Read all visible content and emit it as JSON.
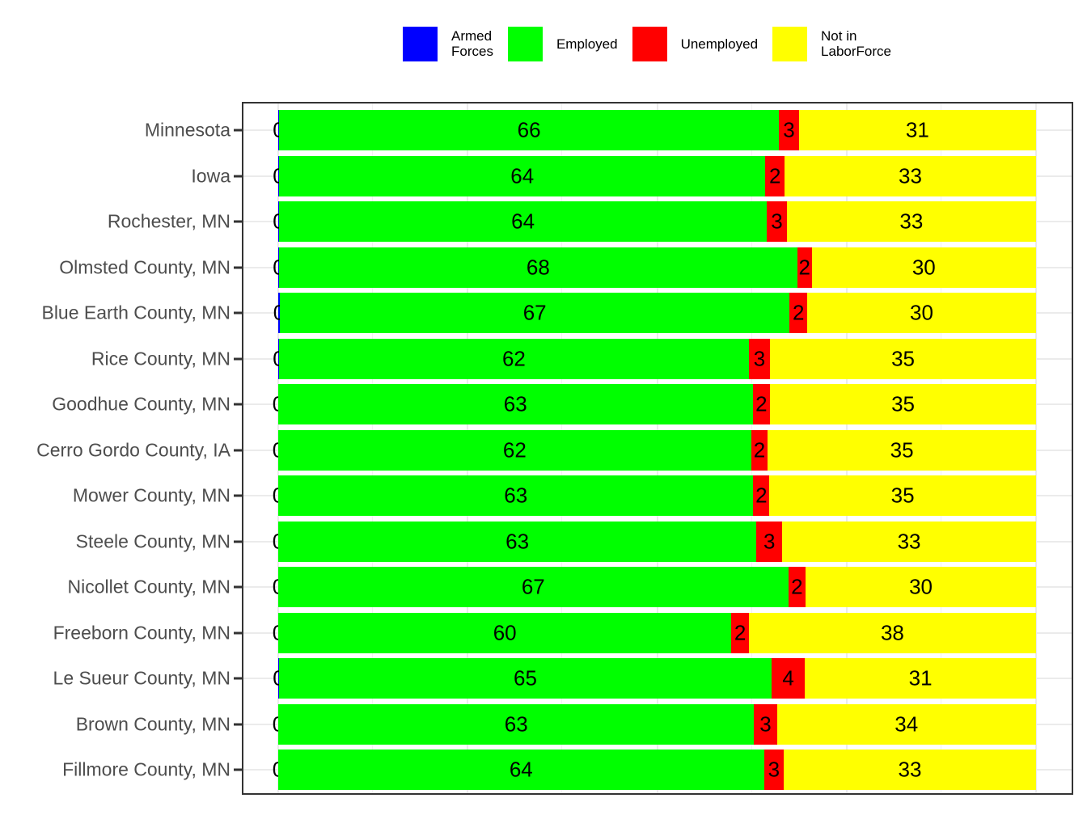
{
  "chart_data": {
    "type": "bar",
    "orientation": "horizontal",
    "stacked": true,
    "title": "",
    "xlabel": "",
    "ylabel": "",
    "xlim": [
      0,
      100
    ],
    "x_unit": "percent",
    "grid": true,
    "legend_position": "top",
    "categories": [
      "Minnesota",
      "Iowa",
      "Rochester, MN",
      "Olmsted County, MN",
      "Blue Earth County, MN",
      "Rice County, MN",
      "Goodhue County, MN",
      "Cerro Gordo County, IA",
      "Mower County, MN",
      "Steele County, MN",
      "Nicollet County, MN",
      "Freeborn County, MN",
      "Le Sueur County, MN",
      "Brown County, MN",
      "Fillmore County, MN"
    ],
    "series": [
      {
        "name": "Armed Forces",
        "color": "#0000ff",
        "values": [
          0.1,
          0.1,
          0.1,
          0.1,
          0.2,
          0.1,
          0.0,
          0.0,
          0.0,
          0.0,
          0.0,
          0.0,
          0.1,
          0.0,
          0.0
        ],
        "labels": [
          "0",
          "0",
          "0",
          "0",
          "0",
          "0",
          "0",
          "0",
          "0",
          "0",
          "0",
          "0",
          "0",
          "0",
          "0"
        ]
      },
      {
        "name": "Employed",
        "color": "#00ff00",
        "values": [
          66.0,
          64.2,
          64.4,
          68.4,
          67.3,
          62.0,
          62.6,
          62.4,
          62.7,
          63.1,
          67.3,
          59.8,
          65.0,
          62.8,
          64.1
        ],
        "labels": [
          "66",
          "64",
          "64",
          "68",
          "67",
          "62",
          "63",
          "62",
          "63",
          "63",
          "67",
          "60",
          "65",
          "63",
          "64"
        ]
      },
      {
        "name": "Unemployed",
        "color": "#ff0000",
        "values": [
          2.6,
          2.5,
          2.6,
          1.9,
          2.3,
          2.8,
          2.3,
          2.2,
          2.1,
          3.4,
          2.3,
          2.3,
          4.4,
          3.0,
          2.6
        ],
        "labels": [
          "3",
          "2",
          "3",
          "2",
          "2",
          "3",
          "2",
          "2",
          "2",
          "3",
          "2",
          "2",
          "4",
          "3",
          "3"
        ]
      },
      {
        "name": "Not in LaborForce",
        "color": "#ffff00",
        "values": [
          31.3,
          33.2,
          32.9,
          29.6,
          30.2,
          35.1,
          35.1,
          35.4,
          35.2,
          33.5,
          30.4,
          37.9,
          30.5,
          34.2,
          33.3
        ],
        "labels": [
          "31",
          "33",
          "33",
          "30",
          "30",
          "35",
          "35",
          "35",
          "35",
          "33",
          "30",
          "38",
          "31",
          "34",
          "33"
        ]
      }
    ],
    "legend": [
      {
        "label": "Armed\nForces",
        "color": "#0000ff"
      },
      {
        "label": "Employed",
        "color": "#00ff00"
      },
      {
        "label": "Unemployed",
        "color": "#ff0000"
      },
      {
        "label": "Not in\nLaborForce",
        "color": "#ffff00"
      }
    ]
  }
}
